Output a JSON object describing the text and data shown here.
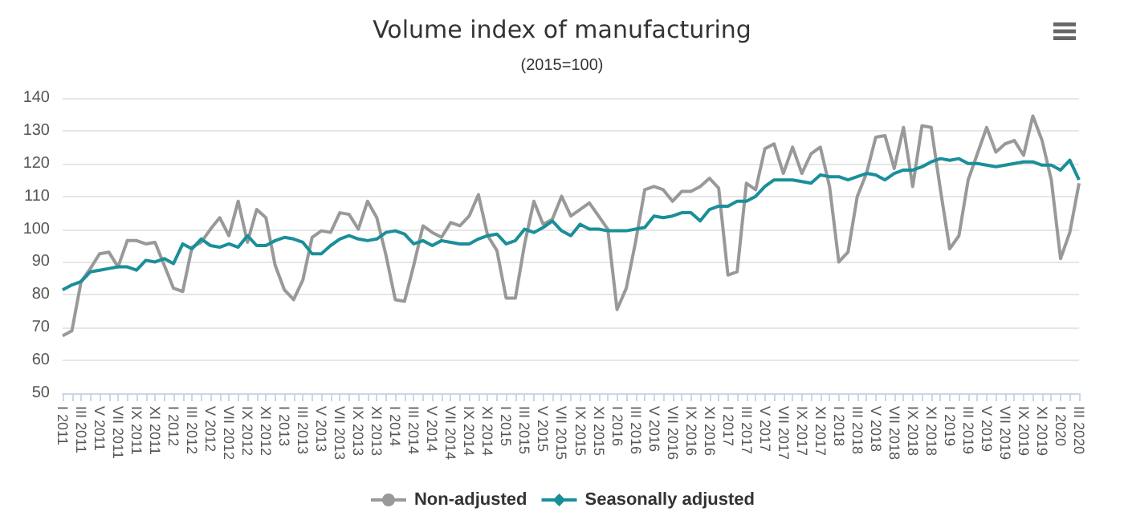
{
  "chart_data": {
    "type": "line",
    "title": "Volume index of manufacturing",
    "subtitle": "(2015=100)",
    "categories": [
      "I 2011",
      null,
      "III 2011",
      null,
      "V 2011",
      null,
      "VII 2011",
      null,
      "IX 2011",
      null,
      "XI 2011",
      null,
      "I 2012",
      null,
      "III 2012",
      null,
      "V 2012",
      null,
      "VII 2012",
      null,
      "IX 2012",
      null,
      "XI 2012",
      null,
      "I 2013",
      null,
      "III 2013",
      null,
      "V 2013",
      null,
      "VII 2013",
      null,
      "IX 2013",
      null,
      "XI 2013",
      null,
      "I 2014",
      null,
      "III 2014",
      null,
      "V 2014",
      null,
      "VII 2014",
      null,
      "IX 2014",
      null,
      "XI 2014",
      null,
      "I 2015",
      null,
      "III 2015",
      null,
      "V 2015",
      null,
      "VII 2015",
      null,
      "IX 2015",
      null,
      "XI 2015",
      null,
      "I 2016",
      null,
      "III 2016",
      null,
      "V 2016",
      null,
      "VII 2016",
      null,
      "IX 2016",
      null,
      "XI 2016",
      null,
      "I 2017",
      null,
      "III 2017",
      null,
      "V 2017",
      null,
      "VII 2017",
      null,
      "IX 2017",
      null,
      "XI 2017",
      null,
      "I 2018",
      null,
      "III 2018",
      null,
      "V 2018",
      null,
      "VII 2018",
      null,
      "IX 2018",
      null,
      "XI 2018",
      null,
      "I 2019",
      null,
      "III 2019",
      null,
      "V 2019",
      null,
      "VII 2019",
      null,
      "IX 2019",
      null,
      "XI 2019",
      null,
      "I 2020",
      null,
      "III 2020"
    ],
    "series": [
      {
        "name": "Non-adjusted",
        "color": "#999999",
        "values": [
          67.5,
          69,
          84,
          88,
          92.5,
          93,
          88.5,
          96.5,
          96.5,
          95.5,
          96,
          89,
          82,
          81,
          94.5,
          96,
          100,
          103.5,
          98,
          108.5,
          96,
          106,
          103.5,
          89,
          81.5,
          78.5,
          84.5,
          97.5,
          99.5,
          99,
          105,
          104.5,
          100,
          108.5,
          103.5,
          92,
          78.5,
          78,
          89,
          101,
          99,
          97.5,
          102,
          101,
          104,
          110.5,
          98,
          93.5,
          79,
          79,
          95.5,
          108.5,
          101.5,
          103,
          110,
          104,
          106,
          108,
          104,
          100,
          75.5,
          82,
          96,
          112,
          113,
          112,
          108.5,
          111.5,
          111.5,
          113,
          115.5,
          112.5,
          86,
          87,
          114,
          112,
          124.5,
          126,
          117,
          125,
          117,
          123,
          125,
          113,
          90,
          93,
          110,
          117,
          128,
          128.5,
          118.5,
          131,
          113,
          131.5,
          131,
          112,
          94,
          98,
          115,
          123,
          131,
          123.5,
          126,
          127,
          122.5,
          134.5,
          127,
          115,
          91,
          99,
          114
        ]
      },
      {
        "name": "Seasonally adjusted",
        "color": "#1a8f9a",
        "values": [
          81.5,
          83,
          84,
          87,
          87.5,
          88,
          88.5,
          88.5,
          87.5,
          90.5,
          90,
          91,
          89.5,
          95.5,
          94,
          97,
          95,
          94.5,
          95.5,
          94.5,
          98,
          95,
          95,
          96.5,
          97.5,
          97,
          96,
          92.5,
          92.5,
          95,
          97,
          98,
          97,
          96.5,
          97,
          99,
          99.5,
          98.5,
          95.5,
          96.5,
          95,
          96.5,
          96,
          95.5,
          95.5,
          97,
          98,
          98.5,
          95.5,
          96.5,
          100,
          99,
          100.5,
          102.5,
          99.5,
          98,
          101.5,
          100,
          100,
          99.5,
          99.5,
          99.5,
          100,
          100.5,
          104,
          103.5,
          104,
          105,
          105,
          102.5,
          106,
          107,
          107,
          108.5,
          108.5,
          110,
          113,
          115,
          115,
          115,
          114.5,
          114,
          116.5,
          116,
          116,
          115,
          116,
          117,
          116.5,
          115,
          117,
          118,
          118,
          119,
          120.5,
          121.5,
          121,
          121.5,
          120,
          120,
          119.5,
          119,
          119.5,
          120,
          120.5,
          120.5,
          119.5,
          119.5,
          118,
          121,
          115
        ]
      }
    ],
    "ylim": [
      50,
      140
    ],
    "yticks": [
      50,
      60,
      70,
      80,
      90,
      100,
      110,
      120,
      130,
      140
    ],
    "grid": "y",
    "legend": "bottom",
    "marker": "none",
    "line_style": "solid"
  }
}
